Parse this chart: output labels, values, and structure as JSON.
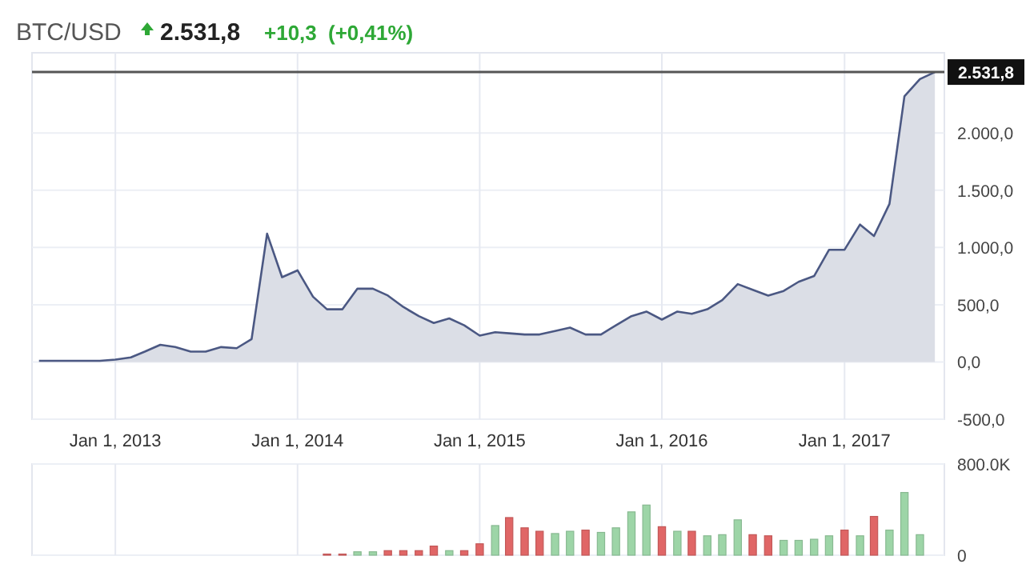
{
  "chart_data": [
    {
      "type": "area",
      "title": "BTC/USD",
      "annotations": [
        "2.531,8",
        "+10,3",
        "(+0,41%)"
      ],
      "color": "#4b5883",
      "x": [
        "2012-08",
        "2012-09",
        "2012-10",
        "2012-11",
        "2012-12",
        "2013-01",
        "2013-02",
        "2013-03",
        "2013-04",
        "2013-05",
        "2013-06",
        "2013-07",
        "2013-08",
        "2013-09",
        "2013-10",
        "2013-11",
        "2013-12",
        "2014-01",
        "2014-02",
        "2014-03",
        "2014-04",
        "2014-05",
        "2014-06",
        "2014-07",
        "2014-08",
        "2014-09",
        "2014-10",
        "2014-11",
        "2014-12",
        "2015-01",
        "2015-02",
        "2015-03",
        "2015-04",
        "2015-05",
        "2015-06",
        "2015-07",
        "2015-08",
        "2015-09",
        "2015-10",
        "2015-11",
        "2015-12",
        "2016-01",
        "2016-02",
        "2016-03",
        "2016-04",
        "2016-05",
        "2016-06",
        "2016-07",
        "2016-08",
        "2016-09",
        "2016-10",
        "2016-11",
        "2016-12",
        "2017-01",
        "2017-02",
        "2017-03",
        "2017-04",
        "2017-05",
        "2017-06",
        "2017-07"
      ],
      "values": [
        10,
        10,
        10,
        10,
        10,
        20,
        40,
        90,
        150,
        130,
        90,
        90,
        130,
        120,
        200,
        1120,
        740,
        800,
        570,
        460,
        460,
        640,
        640,
        580,
        480,
        400,
        340,
        380,
        320,
        230,
        260,
        250,
        240,
        240,
        270,
        300,
        240,
        240,
        320,
        400,
        440,
        370,
        440,
        420,
        460,
        540,
        680,
        630,
        580,
        620,
        700,
        750,
        980,
        980,
        1200,
        1100,
        1380,
        2320,
        2470,
        2531.8
      ],
      "xlim": [
        "2012-07-18",
        "2017-07-20"
      ],
      "xticks": [
        {
          "value": "2013-01-01",
          "label": "Jan 1, 2013"
        },
        {
          "value": "2014-01-01",
          "label": "Jan 1, 2014"
        },
        {
          "value": "2015-01-01",
          "label": "Jan 1, 2015"
        },
        {
          "value": "2016-01-01",
          "label": "Jan 1, 2016"
        },
        {
          "value": "2017-01-01",
          "label": "Jan 1, 2017"
        }
      ],
      "ylim": [
        -500,
        2700
      ],
      "yticks": [
        {
          "value": -500,
          "label": "-500,0"
        },
        {
          "value": 0,
          "label": "0,0"
        },
        {
          "value": 500,
          "label": "500,0"
        },
        {
          "value": 1000,
          "label": "1.000,0"
        },
        {
          "value": 1500,
          "label": "1.500,0"
        },
        {
          "value": 2000,
          "label": "2.000,0"
        }
      ],
      "grid": true,
      "ref_lines": [
        {
          "axis": "y",
          "value": 2531.8,
          "label": "2.531,8",
          "color": "#555555"
        }
      ]
    },
    {
      "type": "bar",
      "tick_labels": "y",
      "grid": true,
      "x": [
        "2014-03",
        "2014-04",
        "2014-05",
        "2014-06",
        "2014-07",
        "2014-08",
        "2014-09",
        "2014-10",
        "2014-11",
        "2014-12",
        "2015-01",
        "2015-02",
        "2015-03",
        "2015-04",
        "2015-05",
        "2015-06",
        "2015-07",
        "2015-08",
        "2015-09",
        "2015-10",
        "2015-11",
        "2015-12",
        "2016-01",
        "2016-02",
        "2016-03",
        "2016-04",
        "2016-05",
        "2016-06",
        "2016-07",
        "2016-08",
        "2016-09",
        "2016-10",
        "2016-11",
        "2016-12",
        "2017-01",
        "2017-02",
        "2017-03",
        "2017-04",
        "2017-05",
        "2017-06"
      ],
      "values": [
        10000,
        10000,
        30000,
        30000,
        40000,
        40000,
        40000,
        80000,
        40000,
        40000,
        100000,
        260000,
        330000,
        240000,
        210000,
        190000,
        210000,
        220000,
        200000,
        240000,
        380000,
        440000,
        250000,
        210000,
        210000,
        170000,
        180000,
        310000,
        180000,
        170000,
        130000,
        130000,
        140000,
        170000,
        220000,
        170000,
        340000,
        220000,
        550000,
        180000
      ],
      "colors": [
        "#e06666",
        "#e06666",
        "#9dd5a7",
        "#9dd5a7",
        "#e06666",
        "#e06666",
        "#e06666",
        "#e06666",
        "#9dd5a7",
        "#e06666",
        "#e06666",
        "#9dd5a7",
        "#e06666",
        "#e06666",
        "#e06666",
        "#9dd5a7",
        "#9dd5a7",
        "#e06666",
        "#9dd5a7",
        "#9dd5a7",
        "#9dd5a7",
        "#9dd5a7",
        "#e06666",
        "#9dd5a7",
        "#e06666",
        "#9dd5a7",
        "#9dd5a7",
        "#9dd5a7",
        "#e06666",
        "#e06666",
        "#9dd5a7",
        "#9dd5a7",
        "#9dd5a7",
        "#9dd5a7",
        "#e06666",
        "#9dd5a7",
        "#e06666",
        "#9dd5a7",
        "#9dd5a7",
        "#9dd5a7"
      ],
      "xlim": [
        "2012-07-18",
        "2017-07-20"
      ],
      "xticks": [
        {
          "value": "2013-01-01",
          "label": null
        },
        {
          "value": "2014-01-01",
          "label": null
        },
        {
          "value": "2015-01-01",
          "label": null
        },
        {
          "value": "2016-01-01",
          "label": null
        },
        {
          "value": "2017-01-01",
          "label": null
        }
      ],
      "ylim": [
        0,
        800000
      ],
      "yticks": [
        0,
        {
          "value": 800000,
          "label": "800.0K"
        }
      ]
    }
  ]
}
